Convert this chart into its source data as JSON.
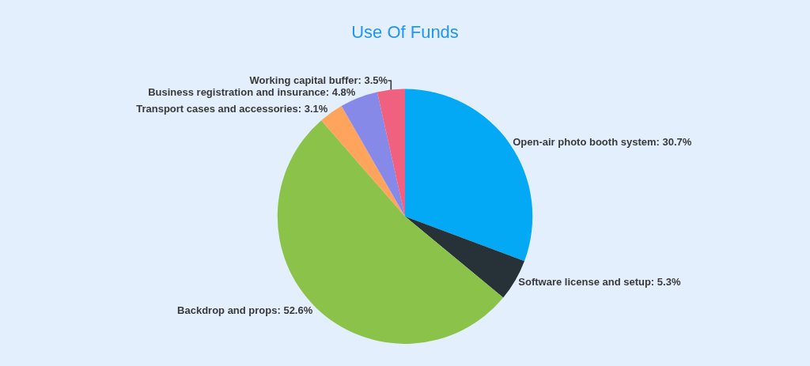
{
  "chart_data": {
    "type": "pie",
    "title": "Use Of Funds",
    "categories": [
      "Open-air photo booth system",
      "Software license and setup",
      "Backdrop and props",
      "Transport cases and accessories",
      "Business registration and insurance",
      "Working capital buffer"
    ],
    "values": [
      30.7,
      5.3,
      52.6,
      3.1,
      4.8,
      3.5
    ],
    "value_labels": [
      "30.7%",
      "5.3%",
      "52.6%",
      "3.1%",
      "4.8%",
      "3.5%"
    ],
    "colors": [
      "#03a9f4",
      "#263238",
      "#8bc34a",
      "#ffa45c",
      "#8689e8",
      "#f0607f"
    ],
    "legend": false
  }
}
